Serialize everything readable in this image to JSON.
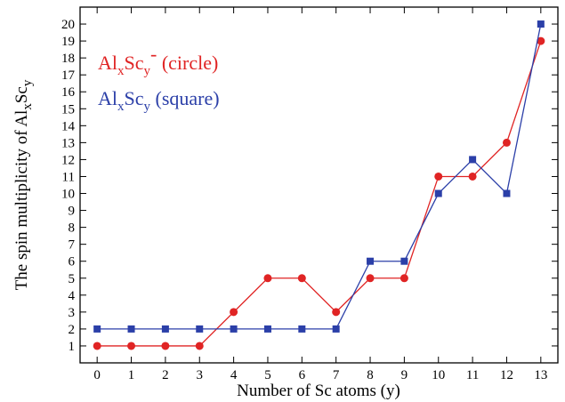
{
  "chart_data": {
    "type": "line",
    "xlabel": "Number of Sc atoms (y)",
    "ylabel": {
      "prefix": "The spin multiplicity of Al",
      "sub1": "x",
      "mid": "Sc",
      "sub2": "y"
    },
    "xlim": [
      -0.5,
      13.5
    ],
    "ylim": [
      0,
      21
    ],
    "x": [
      0,
      1,
      2,
      3,
      4,
      5,
      6,
      7,
      8,
      9,
      10,
      11,
      12,
      13
    ],
    "xticks": [
      0,
      1,
      2,
      3,
      4,
      5,
      6,
      7,
      8,
      9,
      10,
      11,
      12,
      13
    ],
    "yticks": [
      1,
      2,
      3,
      4,
      5,
      6,
      7,
      8,
      9,
      10,
      11,
      12,
      13,
      14,
      15,
      16,
      17,
      18,
      19,
      20
    ],
    "grid": false,
    "legend_position": "top-left",
    "series": [
      {
        "color": "#e02424",
        "marker": "circle",
        "values": [
          1,
          1,
          1,
          1,
          3,
          5,
          5,
          3,
          5,
          5,
          11,
          11,
          13,
          19
        ],
        "legend": {
          "pre": "Al",
          "sub1": "x",
          "mid": "Sc",
          "sub2": "y",
          "sup": "-",
          "post": " (circle)"
        }
      },
      {
        "color": "#2b3fa8",
        "marker": "square",
        "values": [
          2,
          2,
          2,
          2,
          2,
          2,
          2,
          2,
          6,
          6,
          10,
          12,
          10,
          20
        ],
        "legend": {
          "pre": "Al",
          "sub1": "x",
          "mid": "Sc",
          "sub2": "y",
          "sup": "",
          "post": " (square)"
        }
      }
    ]
  }
}
